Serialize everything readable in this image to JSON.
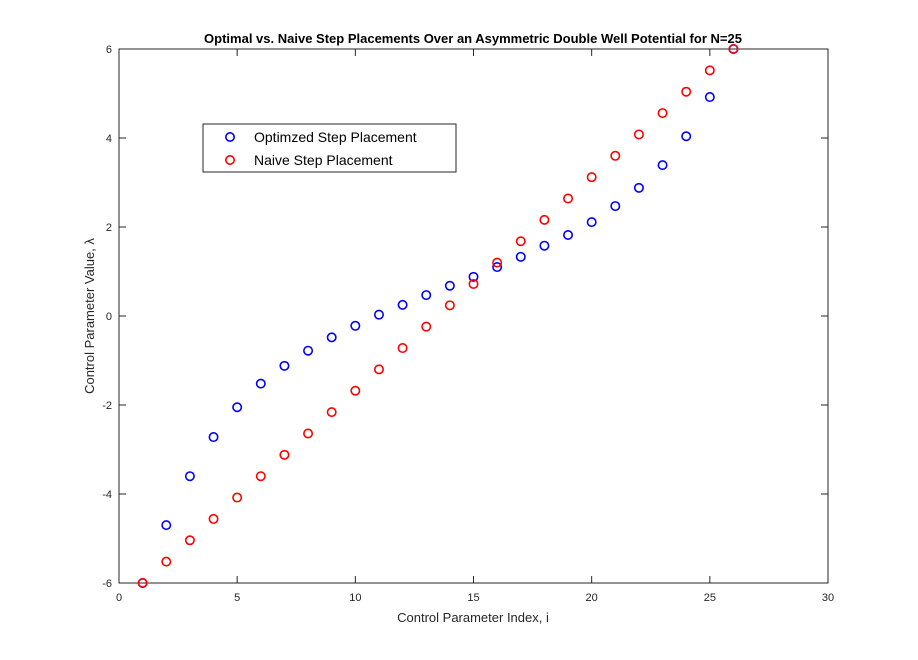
{
  "chart_data": {
    "type": "scatter",
    "title": "Optimal vs. Naive Step Placements Over an Asymmetric Double Well Potential for N=25",
    "xlabel": "Control Parameter Index, i",
    "ylabel": "Control Parameter Value, λ",
    "xlim": [
      0,
      30
    ],
    "ylim": [
      -6,
      6
    ],
    "x_ticks": [
      0,
      5,
      10,
      15,
      20,
      25,
      30
    ],
    "y_ticks": [
      -6,
      -4,
      -2,
      0,
      2,
      4,
      6
    ],
    "x_tick_labels": [
      "0",
      "5",
      "10",
      "15",
      "20",
      "25",
      "30"
    ],
    "y_tick_labels": [
      "-6",
      "-4",
      "-2",
      "0",
      "2",
      "4",
      "6"
    ],
    "grid": false,
    "legend_position": "top-left",
    "marker": "circle-open",
    "series": [
      {
        "name": "Optimzed Step Placement",
        "color": "#0000ff",
        "x": [
          1,
          2,
          3,
          4,
          5,
          6,
          7,
          8,
          9,
          10,
          11,
          12,
          13,
          14,
          15,
          16,
          17,
          18,
          19,
          20,
          21,
          22,
          23,
          24,
          25,
          26
        ],
        "y": [
          -6.0,
          -4.7,
          -3.6,
          -2.72,
          -2.05,
          -1.52,
          -1.12,
          -0.78,
          -0.48,
          -0.22,
          0.03,
          0.25,
          0.47,
          0.68,
          0.88,
          1.1,
          1.33,
          1.58,
          1.82,
          2.11,
          2.47,
          2.88,
          3.39,
          4.04,
          4.92,
          6.0
        ]
      },
      {
        "name": "Naive Step Placement",
        "color": "#ff0000",
        "x": [
          1,
          2,
          3,
          4,
          5,
          6,
          7,
          8,
          9,
          10,
          11,
          12,
          13,
          14,
          15,
          16,
          17,
          18,
          19,
          20,
          21,
          22,
          23,
          24,
          25,
          26
        ],
        "y": [
          -6.0,
          -5.52,
          -5.04,
          -4.56,
          -4.08,
          -3.6,
          -3.12,
          -2.64,
          -2.16,
          -1.68,
          -1.2,
          -0.72,
          -0.24,
          0.24,
          0.72,
          1.2,
          1.68,
          2.16,
          2.64,
          3.12,
          3.6,
          4.08,
          4.56,
          5.04,
          5.52,
          6.0
        ]
      }
    ]
  }
}
